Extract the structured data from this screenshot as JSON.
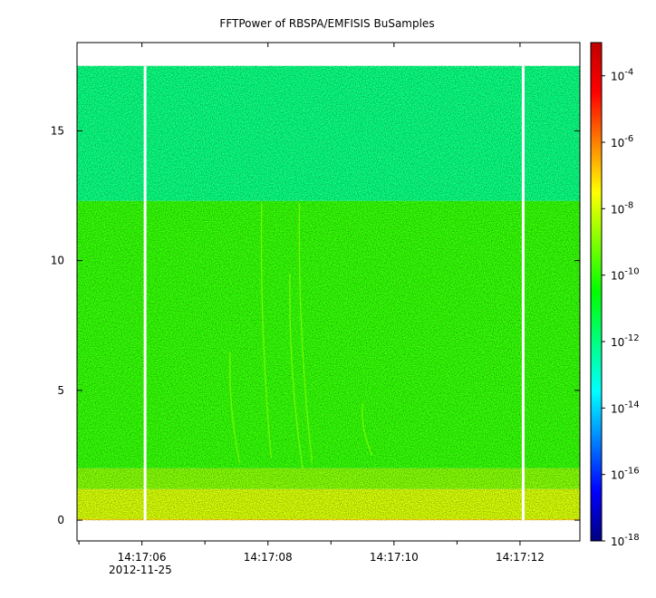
{
  "chart_data": {
    "type": "heatmap",
    "title": "FFTPower of RBSPA/EMFISIS  BuSamples",
    "xlabel": "",
    "ylabel": "",
    "x": {
      "range": [
        "14:17:04.9",
        "14:17:13.0"
      ],
      "ticks": [
        "14:17:06",
        "14:17:08",
        "14:17:10",
        "14:17:12"
      ],
      "tick_times_s": [
        6,
        8,
        10,
        12
      ],
      "minor_tick_times_s": [
        5.0,
        7.0,
        9.0,
        11.0,
        13.0
      ],
      "range_s": [
        4.97,
        12.95
      ],
      "date_label": "2012-11-25"
    },
    "y": {
      "range": [
        -0.8,
        18.4
      ],
      "ticks": [
        0,
        5,
        10,
        15
      ],
      "data_extent": [
        0,
        17.5
      ],
      "band_boundaries": [
        2.0,
        12.3
      ]
    },
    "z": {
      "scale": "log",
      "range": [
        1e-18,
        0.001
      ],
      "ticks": [
        "10-4",
        "10-6",
        "10-8",
        "10-10",
        "10-12",
        "10-14",
        "10-16",
        "10-18"
      ],
      "tick_values": [
        0.0001,
        1e-06,
        1e-08,
        1e-10,
        1e-12,
        1e-14,
        1e-16,
        1e-18
      ],
      "colormap": [
        "#00007f",
        "#0000ff",
        "#0080ff",
        "#00ffff",
        "#00ff80",
        "#00ff00",
        "#80ff00",
        "#ffff00",
        "#ff8000",
        "#ff0000",
        "#c00000"
      ]
    },
    "data_gaps_time_s": [
      6.05,
      12.05
    ],
    "bands": [
      {
        "freq_range": [
          0.0,
          0.05
        ],
        "power": 1e-07
      },
      {
        "freq_range": [
          0.05,
          1.2
        ],
        "power": 1e-08
      },
      {
        "freq_range": [
          1.2,
          2.0
        ],
        "power": 1e-09
      },
      {
        "freq_range": [
          2.0,
          12.3
        ],
        "power": 1e-10
      },
      {
        "freq_range": [
          12.3,
          17.5
        ],
        "power": 1e-12
      }
    ],
    "streaks": [
      {
        "t0": 7.9,
        "f0": 12.2,
        "t1": 8.05,
        "f1": 2.4
      },
      {
        "t0": 8.5,
        "f0": 12.2,
        "t1": 8.7,
        "f1": 2.2
      },
      {
        "t0": 8.35,
        "f0": 9.5,
        "t1": 8.55,
        "f1": 2.0
      },
      {
        "t0": 9.5,
        "f0": 4.5,
        "t1": 9.65,
        "f1": 2.5
      },
      {
        "t0": 7.4,
        "f0": 6.5,
        "t1": 7.55,
        "f1": 2.2
      }
    ],
    "grid": false
  }
}
